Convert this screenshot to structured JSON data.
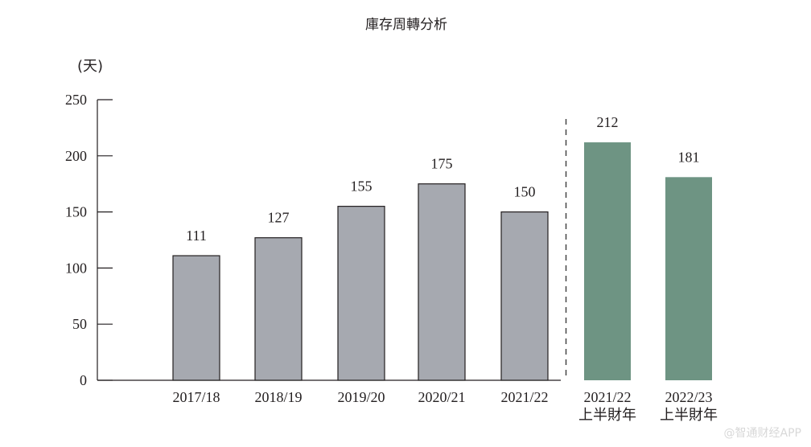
{
  "chart_data": {
    "type": "bar",
    "title": "庫存周轉分析",
    "ylabel": "(天)",
    "ylim": [
      0,
      250
    ],
    "yticks": [
      0,
      50,
      100,
      150,
      200,
      250
    ],
    "grid": false,
    "categories": [
      [
        "2017/18"
      ],
      [
        "2018/19"
      ],
      [
        "2019/20"
      ],
      [
        "2020/21"
      ],
      [
        "2021/22"
      ],
      [
        "2021/22",
        "上半財年"
      ],
      [
        "2022/23",
        "上半財年"
      ]
    ],
    "values": [
      111,
      127,
      155,
      175,
      150,
      212,
      181
    ],
    "colors": [
      "#a6a9b0",
      "#a6a9b0",
      "#a6a9b0",
      "#a6a9b0",
      "#a6a9b0",
      "#6e9483",
      "#6e9483"
    ],
    "divider_after_index": 4
  },
  "watermark": "@智通财经APP"
}
